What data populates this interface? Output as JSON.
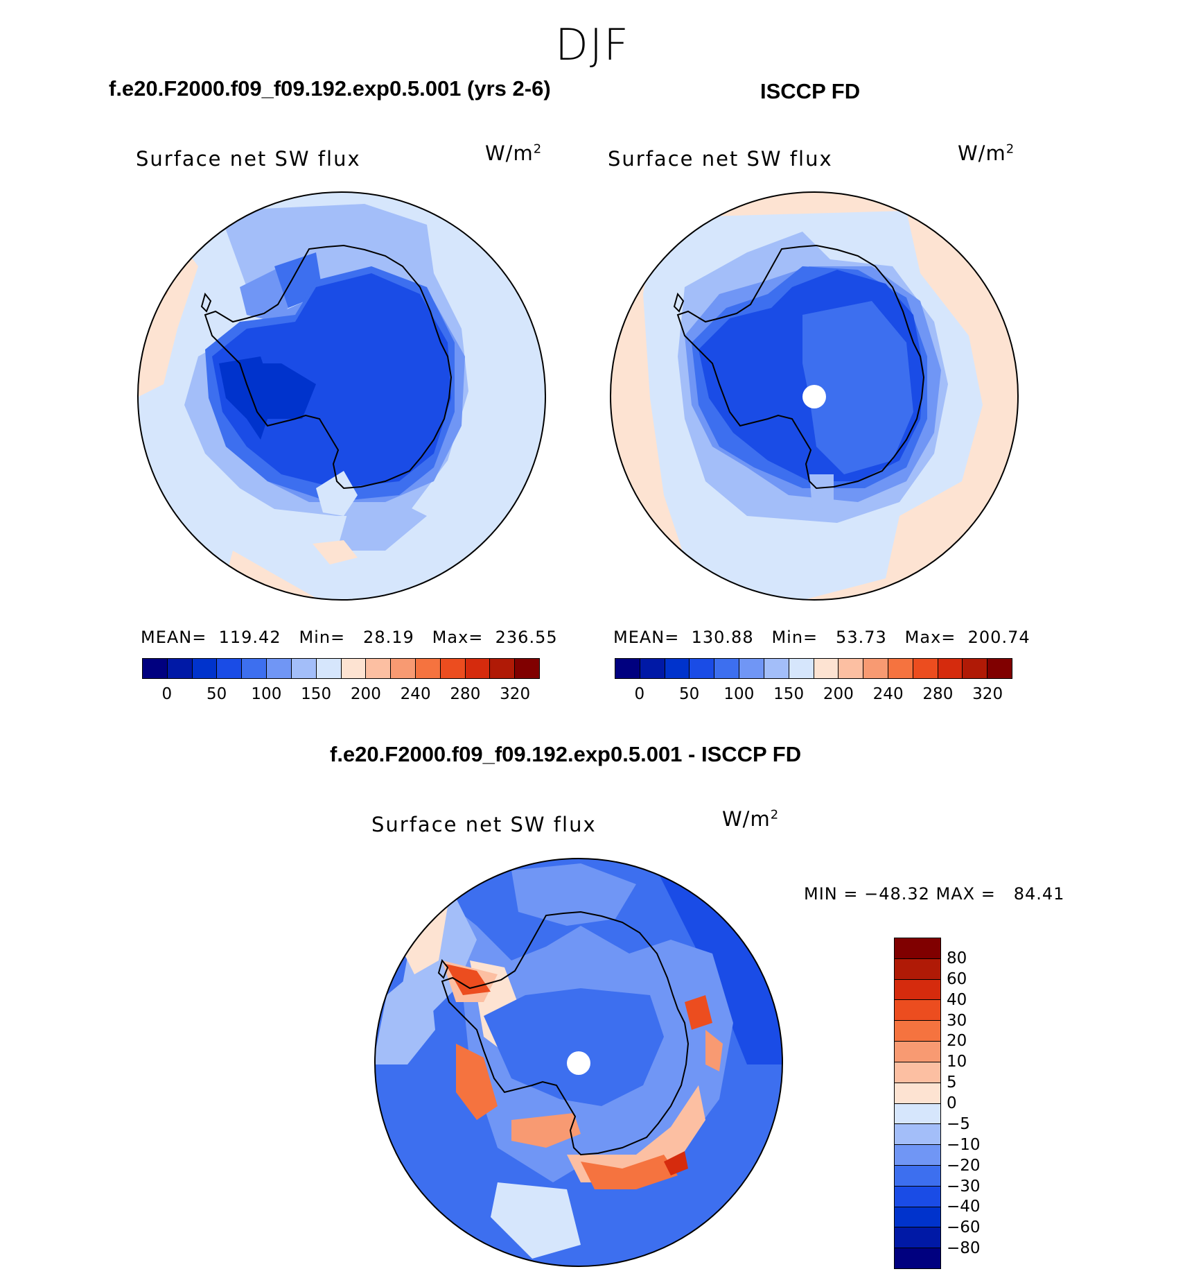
{
  "figure": {
    "season": "DJF",
    "units_base": "W/m",
    "units_exp": "2"
  },
  "panels": {
    "model": {
      "title": "f.e20.F2000.f09_f09.192.exp0.5.001 (yrs 2-6)",
      "variable": "Surface net SW flux",
      "stats": "MEAN=  119.42   Min=   28.19   Max=  236.55",
      "colorbar_ticks": [
        "0",
        "50",
        "100",
        "150",
        "200",
        "240",
        "280",
        "320"
      ]
    },
    "obs": {
      "title": "ISCCP FD",
      "variable": "Surface net SW flux",
      "stats": "MEAN=  130.88   Min=   53.73   Max=  200.74",
      "colorbar_ticks": [
        "0",
        "50",
        "100",
        "150",
        "200",
        "240",
        "280",
        "320"
      ]
    },
    "diff": {
      "title": "f.e20.F2000.f09_f09.192.exp0.5.001 - ISCCP FD",
      "variable": "Surface net SW flux",
      "stats": "MIN = −48.32 MAX =   84.41",
      "colorbar_ticks": [
        "80",
        "60",
        "40",
        "30",
        "20",
        "10",
        "5",
        "0",
        "−5",
        "−10",
        "−20",
        "−30",
        "−40",
        "−60",
        "−80"
      ]
    }
  },
  "palette": {
    "sequential": [
      "#00007f",
      "#0019a6",
      "#0033cc",
      "#1a4ce6",
      "#3d6fef",
      "#7096f5",
      "#a3bef9",
      "#d6e6fc",
      "#fde3d2",
      "#fcbfa2",
      "#f89a72",
      "#f5733f",
      "#ec4d1f",
      "#d52b0d",
      "#b01a06",
      "#800000"
    ],
    "diff_top_to_bottom": [
      "#800000",
      "#b01a06",
      "#d52b0d",
      "#ec4d1f",
      "#f5733f",
      "#f89a72",
      "#fcbfa2",
      "#fde3d2",
      "#d6e6fc",
      "#a3bef9",
      "#7096f5",
      "#3d6fef",
      "#1a4ce6",
      "#0033cc",
      "#0019a6",
      "#00007f"
    ]
  }
}
